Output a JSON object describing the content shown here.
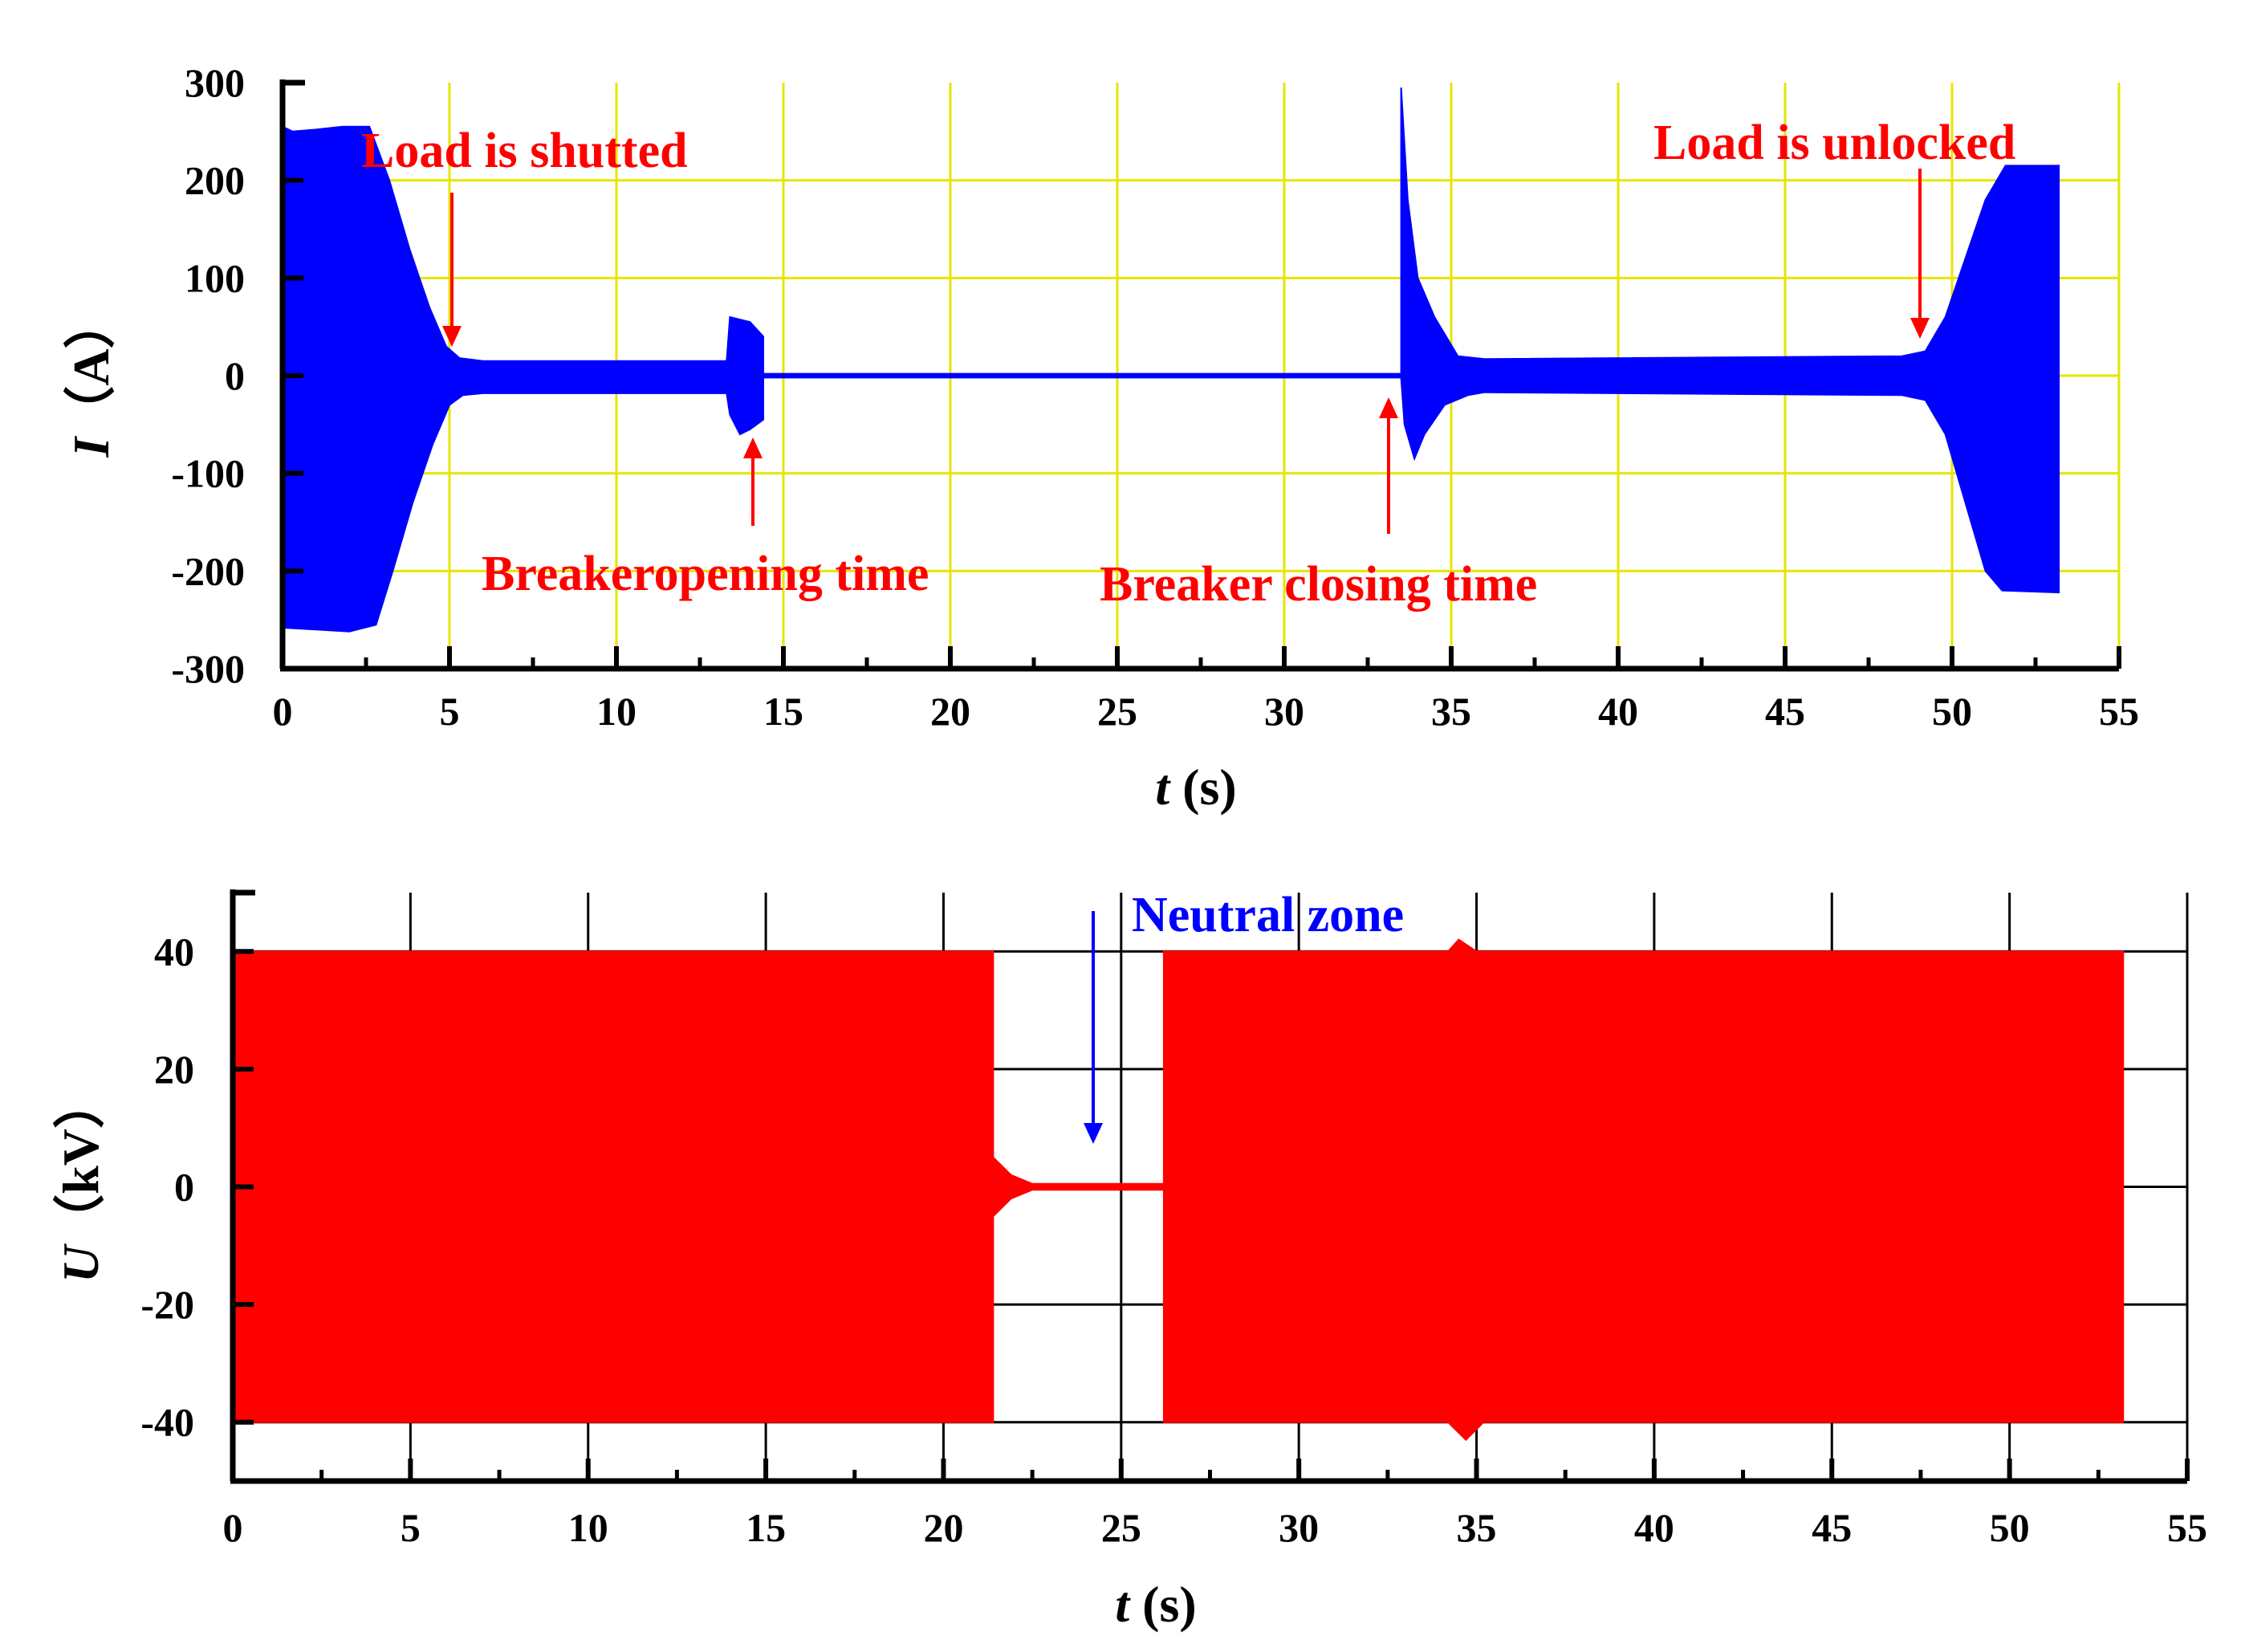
{
  "chart_data": [
    {
      "type": "line",
      "series": [
        {
          "name": "",
          "color": "#0000ff",
          "mode": "amplitude-envelope"
        }
      ],
      "xlabel": {
        "var": "t",
        "unit": " (s)"
      },
      "ylabel": {
        "var": "I",
        "unit": "（A）"
      },
      "xlim": [
        0,
        55
      ],
      "ylim": [
        -300,
        300
      ],
      "xticks": [
        0,
        5,
        10,
        15,
        20,
        25,
        30,
        35,
        40,
        45,
        50,
        55
      ],
      "yticks": [
        300,
        200,
        100,
        0,
        -100,
        -200,
        -300
      ],
      "grid": true,
      "grid_color": "#e6e600",
      "envelope": {
        "upper": [
          [
            0,
            255
          ],
          [
            0.3,
            250
          ],
          [
            1.0,
            252
          ],
          [
            1.8,
            255
          ],
          [
            2.6,
            255
          ],
          [
            3.2,
            200
          ],
          [
            3.8,
            130
          ],
          [
            4.4,
            70
          ],
          [
            4.9,
            30
          ],
          [
            5.3,
            18
          ],
          [
            6,
            15
          ],
          [
            13.3,
            15
          ],
          [
            13.4,
            60
          ],
          [
            14.0,
            55
          ],
          [
            14.4,
            40
          ],
          [
            14.4,
            2
          ],
          [
            33.5,
            2
          ],
          [
            33.5,
            295
          ],
          [
            33.7,
            180
          ],
          [
            34.0,
            100
          ],
          [
            34.5,
            60
          ],
          [
            35.2,
            20
          ],
          [
            36,
            17
          ],
          [
            48.5,
            20
          ],
          [
            49.2,
            25
          ],
          [
            49.8,
            60
          ],
          [
            50.4,
            120
          ],
          [
            51.0,
            180
          ],
          [
            51.6,
            215
          ],
          [
            53.2,
            215
          ]
        ],
        "lower": [
          [
            0,
            -258
          ],
          [
            1.0,
            -260
          ],
          [
            2.0,
            -262
          ],
          [
            2.8,
            -255
          ],
          [
            3.3,
            -200
          ],
          [
            3.9,
            -130
          ],
          [
            4.5,
            -70
          ],
          [
            5.0,
            -30
          ],
          [
            5.4,
            -20
          ],
          [
            6,
            -18
          ],
          [
            13.3,
            -18
          ],
          [
            13.4,
            -40
          ],
          [
            13.7,
            -60
          ],
          [
            14.0,
            -55
          ],
          [
            14.4,
            -45
          ],
          [
            14.4,
            -2
          ],
          [
            33.5,
            -2
          ],
          [
            33.6,
            -50
          ],
          [
            33.9,
            -85
          ],
          [
            34.2,
            -60
          ],
          [
            34.8,
            -30
          ],
          [
            35.5,
            -20
          ],
          [
            36,
            -17
          ],
          [
            48.5,
            -20
          ],
          [
            49.2,
            -25
          ],
          [
            49.8,
            -60
          ],
          [
            50.4,
            -130
          ],
          [
            51.0,
            -200
          ],
          [
            51.5,
            -220
          ],
          [
            53.2,
            -222
          ]
        ]
      },
      "annotations": [
        {
          "text": "Load is shutted",
          "x": 5.3,
          "y": 25,
          "color": "#ff0000"
        },
        {
          "text": "Breakeropening time",
          "x": 14.0,
          "y": -55,
          "color": "#ff0000"
        },
        {
          "text": "Breaker closing time",
          "x": 33.3,
          "y": -5,
          "color": "#ff0000"
        },
        {
          "text": "Load is unlocked",
          "x": 49.1,
          "y": 35,
          "color": "#ff0000"
        }
      ]
    },
    {
      "type": "line",
      "series": [
        {
          "name": "",
          "color": "#ff0000",
          "mode": "amplitude-envelope"
        }
      ],
      "xlabel": {
        "var": "t",
        "unit": " (s)"
      },
      "ylabel": {
        "var": "U",
        "unit": "（kV）"
      },
      "xlim": [
        0,
        55
      ],
      "ylim": [
        -50,
        50
      ],
      "xticks": [
        0,
        5,
        10,
        15,
        20,
        25,
        30,
        35,
        40,
        45,
        50,
        55
      ],
      "yticks": [
        40,
        20,
        0,
        -20,
        -40
      ],
      "grid": true,
      "grid_color": "#000000",
      "envelope": {
        "upper": [
          [
            0,
            40
          ],
          [
            21.4,
            40
          ],
          [
            21.4,
            5
          ],
          [
            21.9,
            2
          ],
          [
            22.5,
            0.5
          ],
          [
            26.2,
            0.5
          ],
          [
            26.2,
            40
          ],
          [
            34.2,
            40
          ],
          [
            34.5,
            42
          ],
          [
            35.0,
            40
          ],
          [
            53.2,
            40
          ]
        ],
        "lower": [
          [
            0,
            -40
          ],
          [
            21.4,
            -40
          ],
          [
            21.4,
            -5
          ],
          [
            21.9,
            -2
          ],
          [
            22.5,
            -0.5
          ],
          [
            26.2,
            -0.5
          ],
          [
            26.2,
            -40
          ],
          [
            34.2,
            -40
          ],
          [
            34.7,
            -43
          ],
          [
            35.2,
            -40
          ],
          [
            53.2,
            -40
          ]
        ]
      },
      "annotations": [
        {
          "text": "Neutral zone",
          "x": 24.1,
          "y": 7,
          "color": "#0000ff"
        }
      ]
    }
  ]
}
